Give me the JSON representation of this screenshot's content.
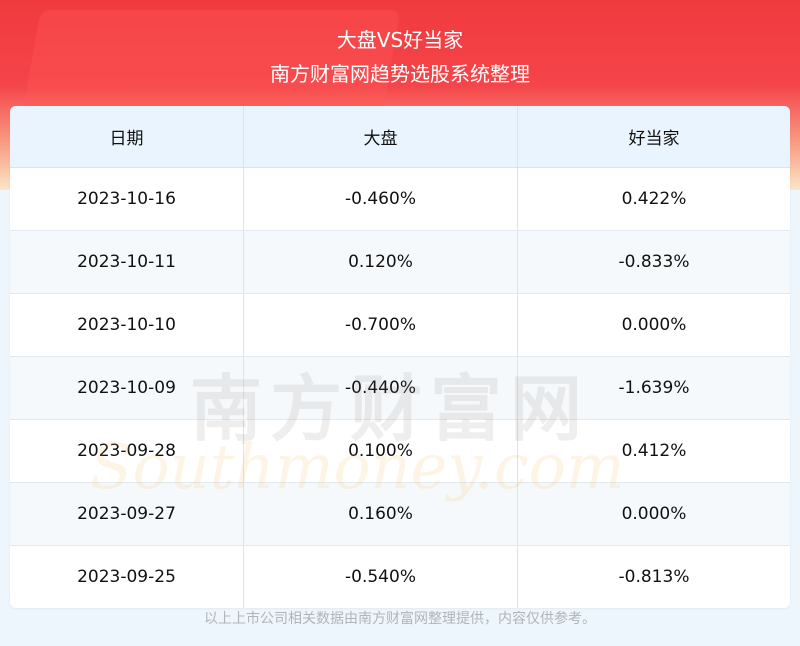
{
  "header": {
    "title": "大盘VS好当家",
    "subtitle": "南方财富网趋势选股系统整理"
  },
  "table": {
    "columns": [
      "日期",
      "大盘",
      "好当家"
    ],
    "rows": [
      [
        "2023-10-16",
        "-0.460%",
        "0.422%"
      ],
      [
        "2023-10-11",
        "0.120%",
        "-0.833%"
      ],
      [
        "2023-10-10",
        "-0.700%",
        "0.000%"
      ],
      [
        "2023-10-09",
        "-0.440%",
        "-1.639%"
      ],
      [
        "2023-09-28",
        "0.100%",
        "0.412%"
      ],
      [
        "2023-09-27",
        "0.160%",
        "0.000%"
      ],
      [
        "2023-09-25",
        "-0.540%",
        "-0.813%"
      ]
    ]
  },
  "watermark": {
    "cn": "南方财富网",
    "en": "Southmoney.com"
  },
  "footer": {
    "note": "以上上市公司相关数据由南方财富网整理提供，内容仅供参考。"
  },
  "colors": {
    "banner": "#f03a3e",
    "header_bg": "#eaf4fe",
    "page_bg": "#eef6fd"
  }
}
